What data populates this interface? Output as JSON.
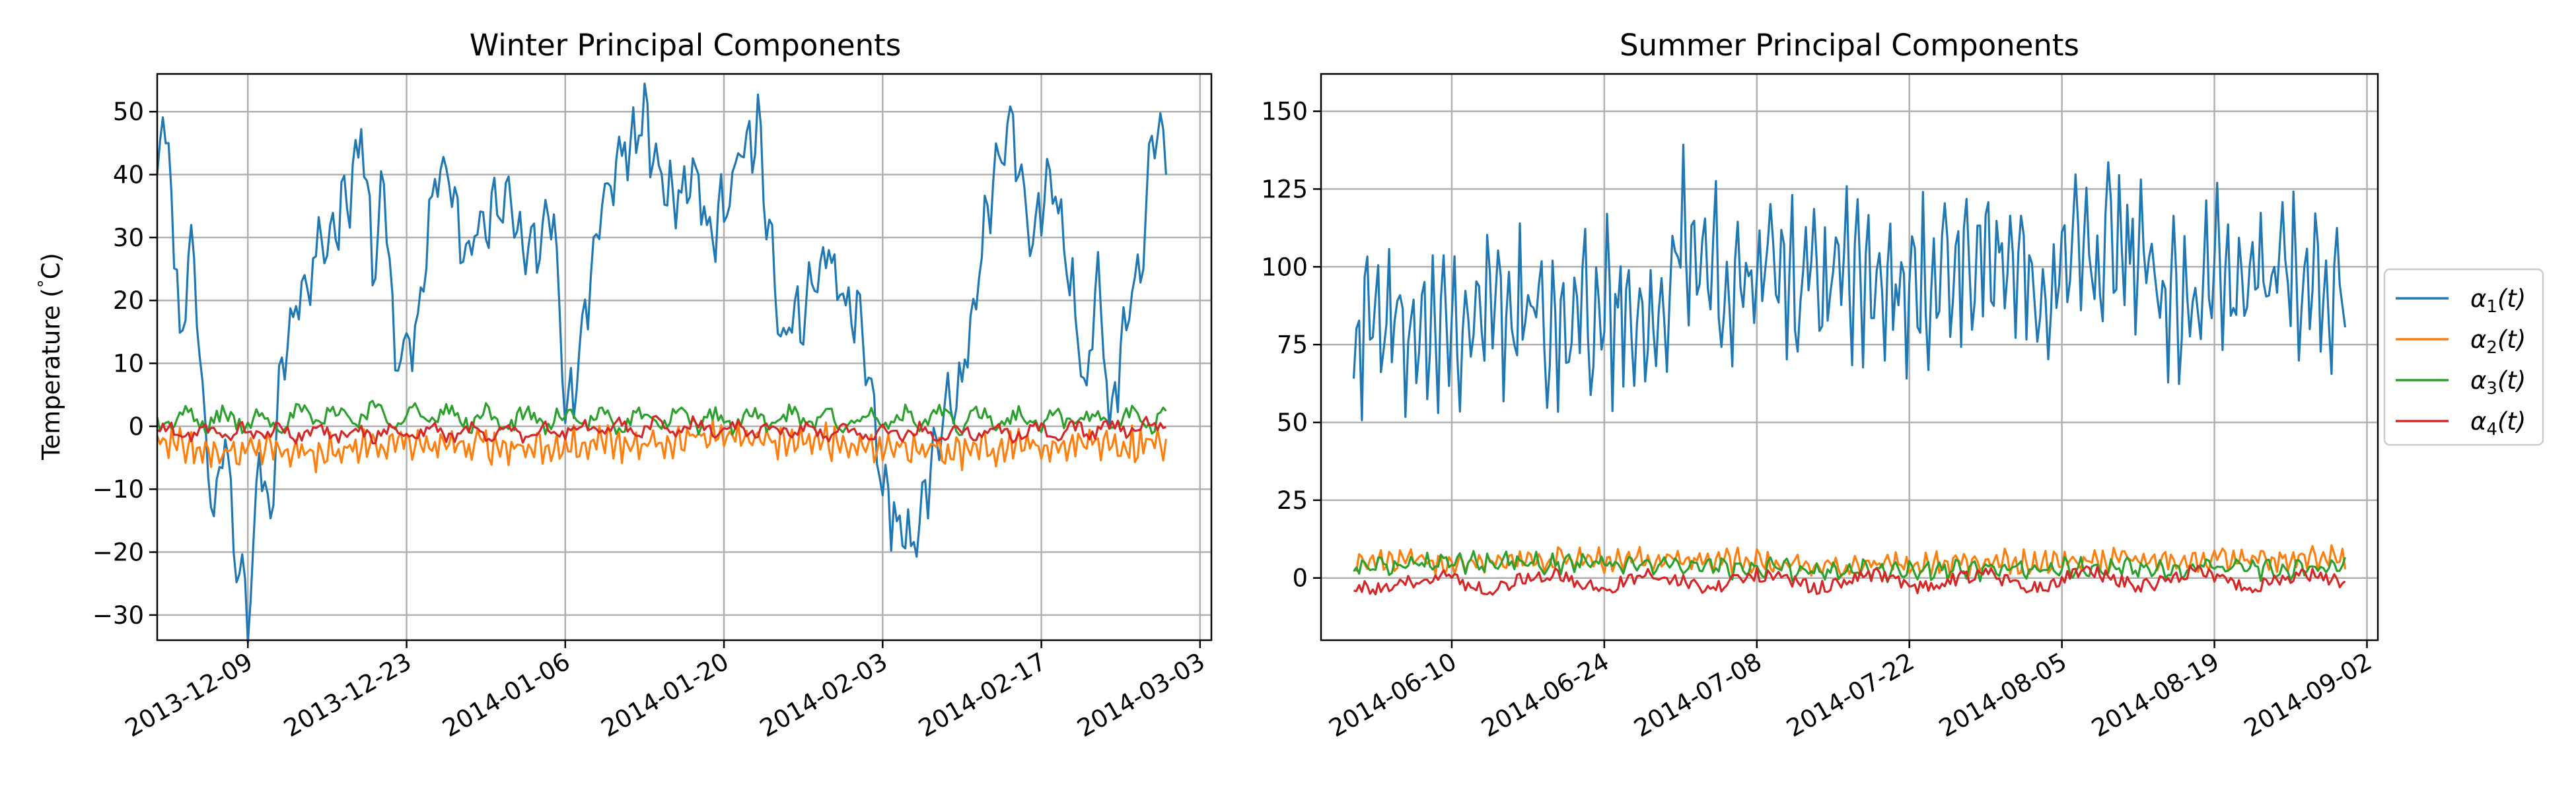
{
  "chart_data": [
    {
      "type": "line",
      "title": "Winter Principal Components",
      "ylabel": "Temperature ($^\\circ$C)",
      "ylabel_display": "Temperature (",
      "ylabel_deg": "°",
      "ylabel_unit": "C)",
      "xlim": [
        "2013-12-01",
        "2014-03-04"
      ],
      "ylim": [
        -34,
        56
      ],
      "grid": true,
      "x_ticks": [
        "2013-12-09",
        "2013-12-23",
        "2014-01-06",
        "2014-01-20",
        "2014-02-03",
        "2014-02-17",
        "2014-03-03"
      ],
      "y_ticks": [
        -30,
        -20,
        -10,
        0,
        10,
        20,
        30,
        40,
        50
      ],
      "x_range": [
        "2013-12-01",
        "2014-02-28"
      ],
      "series": [
        {
          "name": "α1(t)",
          "color": "#1f77b4",
          "keypoints": [
            [
              "2013-12-01",
              39
            ],
            [
              "2013-12-01",
              52
            ],
            [
              "2013-12-02",
              43
            ],
            [
              "2013-12-03",
              15
            ],
            [
              "2013-12-04",
              28
            ],
            [
              "2013-12-05",
              5
            ],
            [
              "2013-12-06",
              -12
            ],
            [
              "2013-12-07",
              -2
            ],
            [
              "2013-12-08",
              -20
            ],
            [
              "2013-12-09",
              -30
            ],
            [
              "2013-12-10",
              -5
            ],
            [
              "2013-12-11",
              -17
            ],
            [
              "2013-12-12",
              10
            ],
            [
              "2013-12-14",
              23
            ],
            [
              "2013-12-16",
              30
            ],
            [
              "2013-12-18",
              36
            ],
            [
              "2013-12-19",
              49
            ],
            [
              "2013-12-20",
              25
            ],
            [
              "2013-12-21",
              41
            ],
            [
              "2013-12-22",
              9
            ],
            [
              "2013-12-24",
              17
            ],
            [
              "2013-12-26",
              44
            ],
            [
              "2013-12-28",
              28
            ],
            [
              "2013-12-30",
              32
            ],
            [
              "2014-01-01",
              36
            ],
            [
              "2014-01-03",
              26
            ],
            [
              "2014-01-05",
              36
            ],
            [
              "2014-01-06",
              3
            ],
            [
              "2014-01-07",
              7
            ],
            [
              "2014-01-09",
              35
            ],
            [
              "2014-01-11",
              44
            ],
            [
              "2014-01-13",
              48
            ],
            [
              "2014-01-15",
              35
            ],
            [
              "2014-01-17",
              40
            ],
            [
              "2014-01-19",
              30
            ],
            [
              "2014-01-21",
              42
            ],
            [
              "2014-01-23",
              48
            ],
            [
              "2014-01-25",
              15
            ],
            [
              "2014-01-27",
              18
            ],
            [
              "2014-01-29",
              30
            ],
            [
              "2014-01-31",
              17
            ],
            [
              "2014-02-01",
              21
            ],
            [
              "2014-02-02",
              5
            ],
            [
              "2014-02-03",
              -10
            ],
            [
              "2014-02-05",
              -18
            ],
            [
              "2014-02-06",
              -21
            ],
            [
              "2014-02-07",
              -8
            ],
            [
              "2014-02-08",
              -2
            ],
            [
              "2014-02-10",
              8
            ],
            [
              "2014-02-12",
              30
            ],
            [
              "2014-02-14",
              50
            ],
            [
              "2014-02-16",
              30
            ],
            [
              "2014-02-18",
              40
            ],
            [
              "2014-02-20",
              18
            ],
            [
              "2014-02-21",
              4
            ],
            [
              "2014-02-22",
              26
            ],
            [
              "2014-02-23",
              1
            ],
            [
              "2014-02-24",
              10
            ],
            [
              "2014-02-26",
              30
            ],
            [
              "2014-02-27",
              48
            ],
            [
              "2014-02-28",
              45
            ]
          ],
          "jitter": 6,
          "freq": 3.1
        },
        {
          "name": "α2(t)",
          "color": "#ff7f0e",
          "keypoints": [
            [
              "2013-12-01",
              -2
            ],
            [
              "2013-12-08",
              -4
            ],
            [
              "2013-12-15",
              -4
            ],
            [
              "2013-12-22",
              -3
            ],
            [
              "2013-12-29",
              -3
            ],
            [
              "2014-01-05",
              -3
            ],
            [
              "2014-01-12",
              -3
            ],
            [
              "2014-01-19",
              -2
            ],
            [
              "2014-01-26",
              -2
            ],
            [
              "2014-02-02",
              -3
            ],
            [
              "2014-02-09",
              -4
            ],
            [
              "2014-02-16",
              -3
            ],
            [
              "2014-02-23",
              -3
            ],
            [
              "2014-02-28",
              -3
            ]
          ],
          "jitter": 3,
          "freq": 2.7
        },
        {
          "name": "α3(t)",
          "color": "#2ca02c",
          "keypoints": [
            [
              "2013-12-01",
              1
            ],
            [
              "2013-12-09",
              1
            ],
            [
              "2013-12-20",
              2
            ],
            [
              "2014-01-02",
              1
            ],
            [
              "2014-01-15",
              1
            ],
            [
              "2014-02-01",
              1
            ],
            [
              "2014-02-15",
              1
            ],
            [
              "2014-02-28",
              1
            ]
          ],
          "jitter": 2.2,
          "freq": 3.7
        },
        {
          "name": "α4(t)",
          "color": "#d62728",
          "keypoints": [
            [
              "2013-12-01",
              -1
            ],
            [
              "2013-12-15",
              -1
            ],
            [
              "2014-01-01",
              -1
            ],
            [
              "2014-01-15",
              0
            ],
            [
              "2014-02-01",
              -1
            ],
            [
              "2014-02-15",
              -1
            ],
            [
              "2014-02-28",
              0
            ]
          ],
          "jitter": 1.6,
          "freq": 4.3
        }
      ]
    },
    {
      "type": "line",
      "title": "Summer Principal Components",
      "ylabel": "",
      "xlim": [
        "2014-05-29",
        "2014-09-03"
      ],
      "ylim": [
        -20,
        162
      ],
      "grid": true,
      "x_ticks": [
        "2014-06-10",
        "2014-06-24",
        "2014-07-08",
        "2014-07-22",
        "2014-08-05",
        "2014-08-19",
        "2014-09-02"
      ],
      "y_ticks": [
        0,
        25,
        50,
        75,
        100,
        125,
        150
      ],
      "x_range": [
        "2014-06-01",
        "2014-08-31"
      ],
      "series": [
        {
          "name": "α1(t)",
          "color": "#1f77b4",
          "keypoints": [
            [
              "2014-06-01",
              80
            ],
            [
              "2014-06-08",
              85
            ],
            [
              "2014-06-15",
              85
            ],
            [
              "2014-06-22",
              84
            ],
            [
              "2014-06-29",
              88
            ],
            [
              "2014-07-01",
              110
            ],
            [
              "2014-07-03",
              95
            ],
            [
              "2014-07-08",
              98
            ],
            [
              "2014-07-15",
              95
            ],
            [
              "2014-07-22",
              93
            ],
            [
              "2014-07-29",
              100
            ],
            [
              "2014-08-05",
              100
            ],
            [
              "2014-08-10",
              108
            ],
            [
              "2014-08-14",
              90
            ],
            [
              "2014-08-19",
              95
            ],
            [
              "2014-08-26",
              95
            ],
            [
              "2014-08-31",
              88
            ]
          ],
          "jitter": 28,
          "freq": 1.0
        },
        {
          "name": "α2(t)",
          "color": "#ff7f0e",
          "keypoints": [
            [
              "2014-06-01",
              5
            ],
            [
              "2014-06-15",
              6
            ],
            [
              "2014-07-01",
              6
            ],
            [
              "2014-07-15",
              4
            ],
            [
              "2014-08-01",
              5
            ],
            [
              "2014-08-15",
              6
            ],
            [
              "2014-08-31",
              6
            ]
          ],
          "jitter": 4,
          "freq": 2.9
        },
        {
          "name": "α3(t)",
          "color": "#2ca02c",
          "keypoints": [
            [
              "2014-06-01",
              4
            ],
            [
              "2014-06-15",
              5
            ],
            [
              "2014-07-01",
              4
            ],
            [
              "2014-07-15",
              2
            ],
            [
              "2014-08-01",
              3
            ],
            [
              "2014-08-15",
              3
            ],
            [
              "2014-08-31",
              3
            ]
          ],
          "jitter": 3.5,
          "freq": 3.3
        },
        {
          "name": "α4(t)",
          "color": "#d62728",
          "keypoints": [
            [
              "2014-06-01",
              -2
            ],
            [
              "2014-06-15",
              -1
            ],
            [
              "2014-07-01",
              -1
            ],
            [
              "2014-07-15",
              -1
            ],
            [
              "2014-08-01",
              -1
            ],
            [
              "2014-08-15",
              0
            ],
            [
              "2014-08-31",
              -1
            ]
          ],
          "jitter": 4,
          "freq": 3.9
        }
      ]
    }
  ],
  "legend": {
    "placement": "right",
    "entries": [
      {
        "base": "α",
        "sub": "1",
        "suffix": "(t)",
        "color": "#1f77b4"
      },
      {
        "base": "α",
        "sub": "2",
        "suffix": "(t)",
        "color": "#ff7f0e"
      },
      {
        "base": "α",
        "sub": "3",
        "suffix": "(t)",
        "color": "#2ca02c"
      },
      {
        "base": "α",
        "sub": "4",
        "suffix": "(t)",
        "color": "#d62728"
      }
    ]
  }
}
